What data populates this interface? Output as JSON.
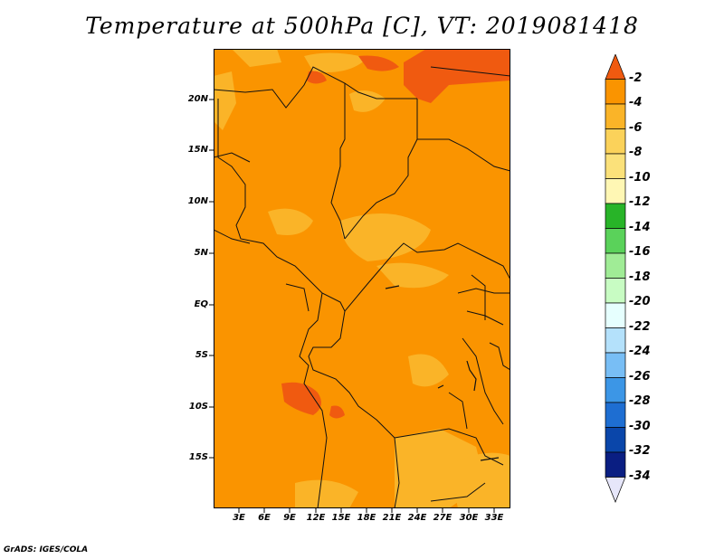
{
  "title": "Temperature at 500hPa [C], VT: 2019081418",
  "credit": "GrADS: IGES/COLA",
  "y_ticks": [
    "20N",
    "15N",
    "10N",
    "5N",
    "EQ",
    "5S",
    "10S",
    "15S"
  ],
  "x_ticks": [
    "3E",
    "6E",
    "9E",
    "12E",
    "15E",
    "18E",
    "21E",
    "24E",
    "27E",
    "30E",
    "33E"
  ],
  "colorbar": {
    "labels": [
      "-2",
      "-4",
      "-6",
      "-8",
      "-10",
      "-12",
      "-14",
      "-16",
      "-18",
      "-20",
      "-22",
      "-24",
      "-26",
      "-28",
      "-30",
      "-32",
      "-34"
    ],
    "colors": [
      "#f05a10",
      "#fa9400",
      "#fab428",
      "#fbd25a",
      "#fbe17a",
      "#fff7b4",
      "#28b428",
      "#5ad25a",
      "#a0ec96",
      "#c8fcc3",
      "#e6fffe",
      "#b4e1fb",
      "#78bef5",
      "#3c96e6",
      "#1e6ed2",
      "#0a46aa",
      "#0a1e82",
      "#e6e6fa"
    ],
    "extend": "both"
  },
  "map": {
    "dominant_color": "#fa9400",
    "warm_patches_color": "#f05a10",
    "cool_patches_color": "#fab428",
    "range_range": "-2 to -8 C"
  }
}
